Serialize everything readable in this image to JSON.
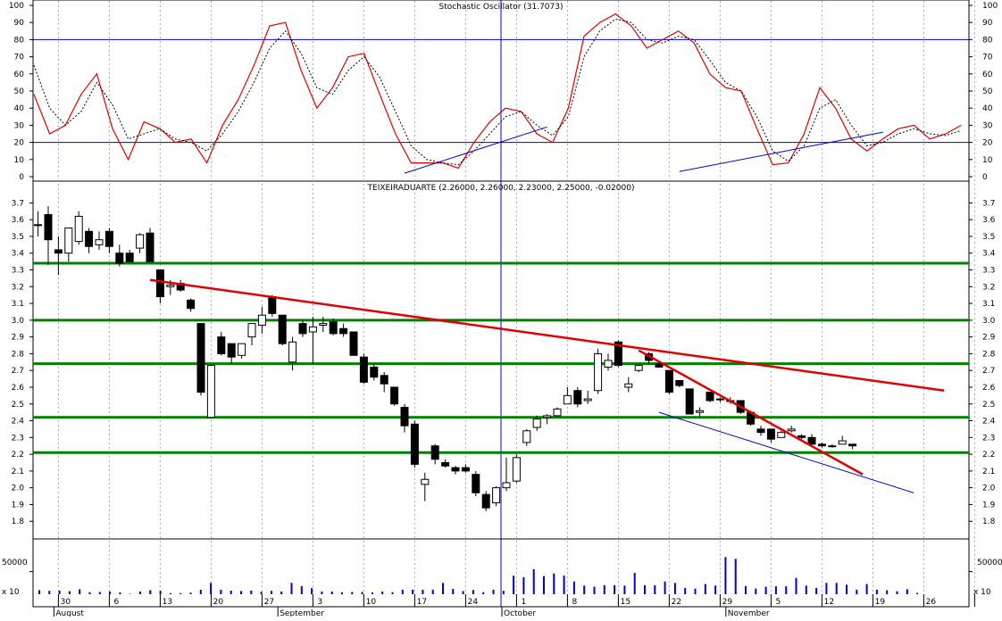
{
  "chart_data": [
    {
      "type": "line",
      "title": "Stochastic Oscillator (31.7073)",
      "ylim": [
        0,
        100
      ],
      "yticks": [
        "0",
        "10",
        "20",
        "30",
        "40",
        "50",
        "60",
        "70",
        "80",
        "90",
        "100"
      ],
      "overbought": 80,
      "oversold": 20,
      "colors": {
        "k": "#e00000",
        "d": "#000000",
        "ref": "#0000cc",
        "trend": "#0000cc"
      },
      "series": [
        {
          "values": [
            48,
            25,
            30,
            48,
            60,
            28,
            10,
            32,
            28,
            20,
            22,
            8,
            30,
            45,
            65,
            88,
            90,
            62,
            40,
            52,
            70,
            72,
            48,
            25,
            8,
            8,
            8,
            5,
            20,
            32,
            40,
            38,
            25,
            20,
            40,
            82,
            90,
            95,
            88,
            75,
            80,
            85,
            78,
            60,
            52,
            50,
            28,
            7,
            8,
            25,
            52,
            40,
            22,
            15,
            22,
            28,
            30,
            22,
            25,
            30
          ]
        },
        {
          "values": [
            65,
            40,
            30,
            38,
            55,
            42,
            22,
            25,
            28,
            22,
            20,
            15,
            25,
            38,
            55,
            75,
            85,
            72,
            52,
            48,
            62,
            70,
            58,
            38,
            18,
            10,
            8,
            7,
            15,
            25,
            35,
            38,
            30,
            24,
            35,
            70,
            85,
            92,
            90,
            80,
            78,
            82,
            80,
            68,
            55,
            50,
            35,
            15,
            9,
            18,
            40,
            45,
            30,
            18,
            20,
            25,
            28,
            25,
            24,
            27
          ]
        }
      ],
      "trendlines": [
        {
          "from": {
            "x": "2010-09-17",
            "y": 2
          },
          "to": {
            "x": "2010-10-07",
            "y": 29
          }
        },
        {
          "from": {
            "x": "2010-10-26",
            "y": 3
          },
          "to": {
            "x": "2010-11-23",
            "y": 26
          }
        }
      ]
    },
    {
      "type": "candlestick",
      "title": "TEIXEIRADUARTE (2.26000, 2.26000, 2.23000, 2.25000, -0.02000)",
      "ylim": [
        1.7,
        3.75
      ],
      "yticks": [
        "1.8",
        "1.9",
        "2.0",
        "2.1",
        "2.2",
        "2.3",
        "2.4",
        "2.5",
        "2.6",
        "2.7",
        "2.8",
        "2.9",
        "3.0",
        "3.1",
        "3.2",
        "3.3",
        "3.4",
        "3.5",
        "3.6",
        "3.7"
      ],
      "colors": {
        "support": "#008000",
        "resistance": "#e00000",
        "channel": "#0000cc",
        "up_fill": "#ffffff",
        "down_fill": "#000000"
      },
      "support_levels": [
        3.34,
        3.0,
        2.74,
        2.42,
        2.21
      ],
      "candles": [
        {
          "o": 3.57,
          "h": 3.65,
          "l": 3.5,
          "c": 3.57
        },
        {
          "o": 3.63,
          "h": 3.68,
          "l": 3.33,
          "c": 3.48
        },
        {
          "o": 3.42,
          "h": 3.5,
          "l": 3.27,
          "c": 3.4
        },
        {
          "o": 3.4,
          "h": 3.55,
          "l": 3.35,
          "c": 3.55
        },
        {
          "o": 3.47,
          "h": 3.65,
          "l": 3.45,
          "c": 3.62
        },
        {
          "o": 3.53,
          "h": 3.55,
          "l": 3.4,
          "c": 3.44
        },
        {
          "o": 3.45,
          "h": 3.53,
          "l": 3.42,
          "c": 3.48
        },
        {
          "o": 3.53,
          "h": 3.55,
          "l": 3.4,
          "c": 3.44
        },
        {
          "o": 3.4,
          "h": 3.45,
          "l": 3.32,
          "c": 3.34
        },
        {
          "o": 3.4,
          "h": 3.42,
          "l": 3.35,
          "c": 3.35
        },
        {
          "o": 3.43,
          "h": 3.52,
          "l": 3.4,
          "c": 3.51
        },
        {
          "o": 3.52,
          "h": 3.55,
          "l": 3.35,
          "c": 3.35
        },
        {
          "o": 3.3,
          "h": 3.3,
          "l": 3.1,
          "c": 3.14
        },
        {
          "o": 3.2,
          "h": 3.24,
          "l": 3.15,
          "c": 3.21
        },
        {
          "o": 3.22,
          "h": 3.24,
          "l": 3.17,
          "c": 3.18
        },
        {
          "o": 3.12,
          "h": 3.13,
          "l": 3.05,
          "c": 3.07
        },
        {
          "o": 2.98,
          "h": 2.98,
          "l": 2.55,
          "c": 2.57
        },
        {
          "o": 2.42,
          "h": 2.73,
          "l": 2.42,
          "c": 2.73
        },
        {
          "o": 2.9,
          "h": 2.93,
          "l": 2.79,
          "c": 2.8
        },
        {
          "o": 2.86,
          "h": 2.86,
          "l": 2.74,
          "c": 2.78
        },
        {
          "o": 2.79,
          "h": 2.86,
          "l": 2.77,
          "c": 2.86
        },
        {
          "o": 2.9,
          "h": 2.98,
          "l": 2.85,
          "c": 2.98
        },
        {
          "o": 2.97,
          "h": 3.08,
          "l": 2.92,
          "c": 3.03
        },
        {
          "o": 3.14,
          "h": 3.15,
          "l": 3.02,
          "c": 3.04
        },
        {
          "o": 3.03,
          "h": 3.03,
          "l": 2.85,
          "c": 2.86
        },
        {
          "o": 2.75,
          "h": 2.9,
          "l": 2.7,
          "c": 2.87
        },
        {
          "o": 2.98,
          "h": 3.0,
          "l": 2.9,
          "c": 2.92
        },
        {
          "o": 2.93,
          "h": 3.02,
          "l": 2.74,
          "c": 2.96
        },
        {
          "o": 2.97,
          "h": 3.02,
          "l": 2.93,
          "c": 2.98
        },
        {
          "o": 2.99,
          "h": 3.01,
          "l": 2.91,
          "c": 2.92
        },
        {
          "o": 2.95,
          "h": 2.98,
          "l": 2.9,
          "c": 2.92
        },
        {
          "o": 2.93,
          "h": 2.93,
          "l": 2.79,
          "c": 2.79
        },
        {
          "o": 2.78,
          "h": 2.8,
          "l": 2.62,
          "c": 2.63
        },
        {
          "o": 2.72,
          "h": 2.74,
          "l": 2.64,
          "c": 2.66
        },
        {
          "o": 2.67,
          "h": 2.69,
          "l": 2.57,
          "c": 2.62
        },
        {
          "o": 2.6,
          "h": 2.6,
          "l": 2.49,
          "c": 2.5
        },
        {
          "o": 2.48,
          "h": 2.5,
          "l": 2.33,
          "c": 2.37
        },
        {
          "o": 2.38,
          "h": 2.4,
          "l": 2.12,
          "c": 2.14
        },
        {
          "o": 2.02,
          "h": 2.09,
          "l": 1.92,
          "c": 2.05
        },
        {
          "o": 2.25,
          "h": 2.26,
          "l": 2.14,
          "c": 2.17
        },
        {
          "o": 2.15,
          "h": 2.17,
          "l": 2.12,
          "c": 2.13
        },
        {
          "o": 2.12,
          "h": 2.13,
          "l": 2.08,
          "c": 2.1
        },
        {
          "o": 2.12,
          "h": 2.14,
          "l": 2.09,
          "c": 2.1
        },
        {
          "o": 2.08,
          "h": 2.1,
          "l": 1.95,
          "c": 1.97
        },
        {
          "o": 1.96,
          "h": 1.98,
          "l": 1.86,
          "c": 1.88
        },
        {
          "o": 1.91,
          "h": 2.01,
          "l": 1.89,
          "c": 2.0
        },
        {
          "o": 2.0,
          "h": 2.18,
          "l": 1.98,
          "c": 2.03
        },
        {
          "o": 2.04,
          "h": 2.2,
          "l": 2.03,
          "c": 2.18
        },
        {
          "o": 2.27,
          "h": 2.35,
          "l": 2.25,
          "c": 2.34
        },
        {
          "o": 2.36,
          "h": 2.43,
          "l": 2.34,
          "c": 2.41
        },
        {
          "o": 2.42,
          "h": 2.44,
          "l": 2.38,
          "c": 2.43
        },
        {
          "o": 2.43,
          "h": 2.48,
          "l": 2.42,
          "c": 2.47
        },
        {
          "o": 2.5,
          "h": 2.6,
          "l": 2.5,
          "c": 2.55
        },
        {
          "o": 2.58,
          "h": 2.6,
          "l": 2.48,
          "c": 2.5
        },
        {
          "o": 2.52,
          "h": 2.58,
          "l": 2.5,
          "c": 2.53
        },
        {
          "o": 2.58,
          "h": 2.83,
          "l": 2.56,
          "c": 2.8
        },
        {
          "o": 2.72,
          "h": 2.8,
          "l": 2.7,
          "c": 2.76
        },
        {
          "o": 2.87,
          "h": 2.88,
          "l": 2.72,
          "c": 2.73
        },
        {
          "o": 2.6,
          "h": 2.66,
          "l": 2.57,
          "c": 2.62
        },
        {
          "o": 2.7,
          "h": 2.74,
          "l": 2.69,
          "c": 2.73
        },
        {
          "o": 2.8,
          "h": 2.81,
          "l": 2.74,
          "c": 2.76
        },
        {
          "o": 2.74,
          "h": 2.76,
          "l": 2.72,
          "c": 2.72
        },
        {
          "o": 2.7,
          "h": 2.7,
          "l": 2.56,
          "c": 2.57
        },
        {
          "o": 2.64,
          "h": 2.64,
          "l": 2.6,
          "c": 2.61
        },
        {
          "o": 2.59,
          "h": 2.59,
          "l": 2.44,
          "c": 2.44
        },
        {
          "o": 2.45,
          "h": 2.48,
          "l": 2.42,
          "c": 2.46
        },
        {
          "o": 2.57,
          "h": 2.57,
          "l": 2.51,
          "c": 2.52
        },
        {
          "o": 2.53,
          "h": 2.54,
          "l": 2.51,
          "c": 2.53
        },
        {
          "o": 2.52,
          "h": 2.54,
          "l": 2.5,
          "c": 2.52
        },
        {
          "o": 2.52,
          "h": 2.52,
          "l": 2.44,
          "c": 2.45
        },
        {
          "o": 2.45,
          "h": 2.46,
          "l": 2.37,
          "c": 2.38
        },
        {
          "o": 2.35,
          "h": 2.37,
          "l": 2.31,
          "c": 2.33
        },
        {
          "o": 2.35,
          "h": 2.35,
          "l": 2.27,
          "c": 2.29
        },
        {
          "o": 2.3,
          "h": 2.34,
          "l": 2.3,
          "c": 2.33
        },
        {
          "o": 2.34,
          "h": 2.37,
          "l": 2.33,
          "c": 2.35
        },
        {
          "o": 2.31,
          "h": 2.32,
          "l": 2.29,
          "c": 2.3
        },
        {
          "o": 2.3,
          "h": 2.32,
          "l": 2.25,
          "c": 2.26
        },
        {
          "o": 2.26,
          "h": 2.27,
          "l": 2.24,
          "c": 2.25
        },
        {
          "o": 2.25,
          "h": 2.26,
          "l": 2.24,
          "c": 2.25
        },
        {
          "o": 2.26,
          "h": 2.31,
          "l": 2.26,
          "c": 2.28
        },
        {
          "o": 2.26,
          "h": 2.26,
          "l": 2.23,
          "c": 2.25
        }
      ],
      "trendlines": [
        {
          "color": "#e00000",
          "from": {
            "x": "2010-08-13",
            "y": 3.24
          },
          "to": {
            "x": "2010-12-01",
            "y": 2.58
          }
        },
        {
          "color": "#e00000",
          "from": {
            "x": "2010-10-20",
            "y": 2.82
          },
          "to": {
            "x": "2010-11-19",
            "y": 2.08
          }
        },
        {
          "color": "#0000cc",
          "from": {
            "x": "2010-10-22",
            "y": 2.45
          },
          "to": {
            "x": "2010-11-26",
            "y": 1.97
          }
        }
      ]
    },
    {
      "type": "bar",
      "ylabel_tick": "50000",
      "unit_label": "x 10",
      "ylim": [
        0,
        120000
      ],
      "values": [
        9000,
        7500,
        8000,
        6500,
        11000,
        4500,
        5000,
        6000,
        4000,
        1000,
        6000,
        9000,
        7500,
        2500,
        2500,
        3500,
        10000,
        25000,
        10000,
        8000,
        7000,
        8000,
        5500,
        7500,
        6000,
        25000,
        18000,
        13500,
        6000,
        6000,
        4500,
        5000,
        5000,
        4000,
        6000,
        4500,
        10000,
        10000,
        10000,
        10000,
        25000,
        12000,
        7000,
        9500,
        4500,
        10000,
        7500,
        41000,
        37500,
        55000,
        40000,
        46000,
        41000,
        28000,
        19000,
        16500,
        20000,
        20000,
        19000,
        47000,
        20000,
        20000,
        28000,
        25000,
        14000,
        12500,
        22500,
        19000,
        82000,
        78000,
        18000,
        12500,
        16500,
        17500,
        17500,
        36000,
        19000,
        14000,
        25000,
        25000,
        21000,
        10000,
        22500,
        10000,
        9000,
        6500,
        11000,
        3000
      ]
    }
  ],
  "x_axis": {
    "day_ticks": [
      "30",
      "6",
      "13",
      "20",
      "27",
      "3",
      "10",
      "17",
      "24",
      "1",
      "8",
      "15",
      "22",
      "29",
      "5",
      "12",
      "19",
      "26"
    ],
    "month_labels": [
      "August",
      "September",
      "October",
      "November"
    ]
  }
}
